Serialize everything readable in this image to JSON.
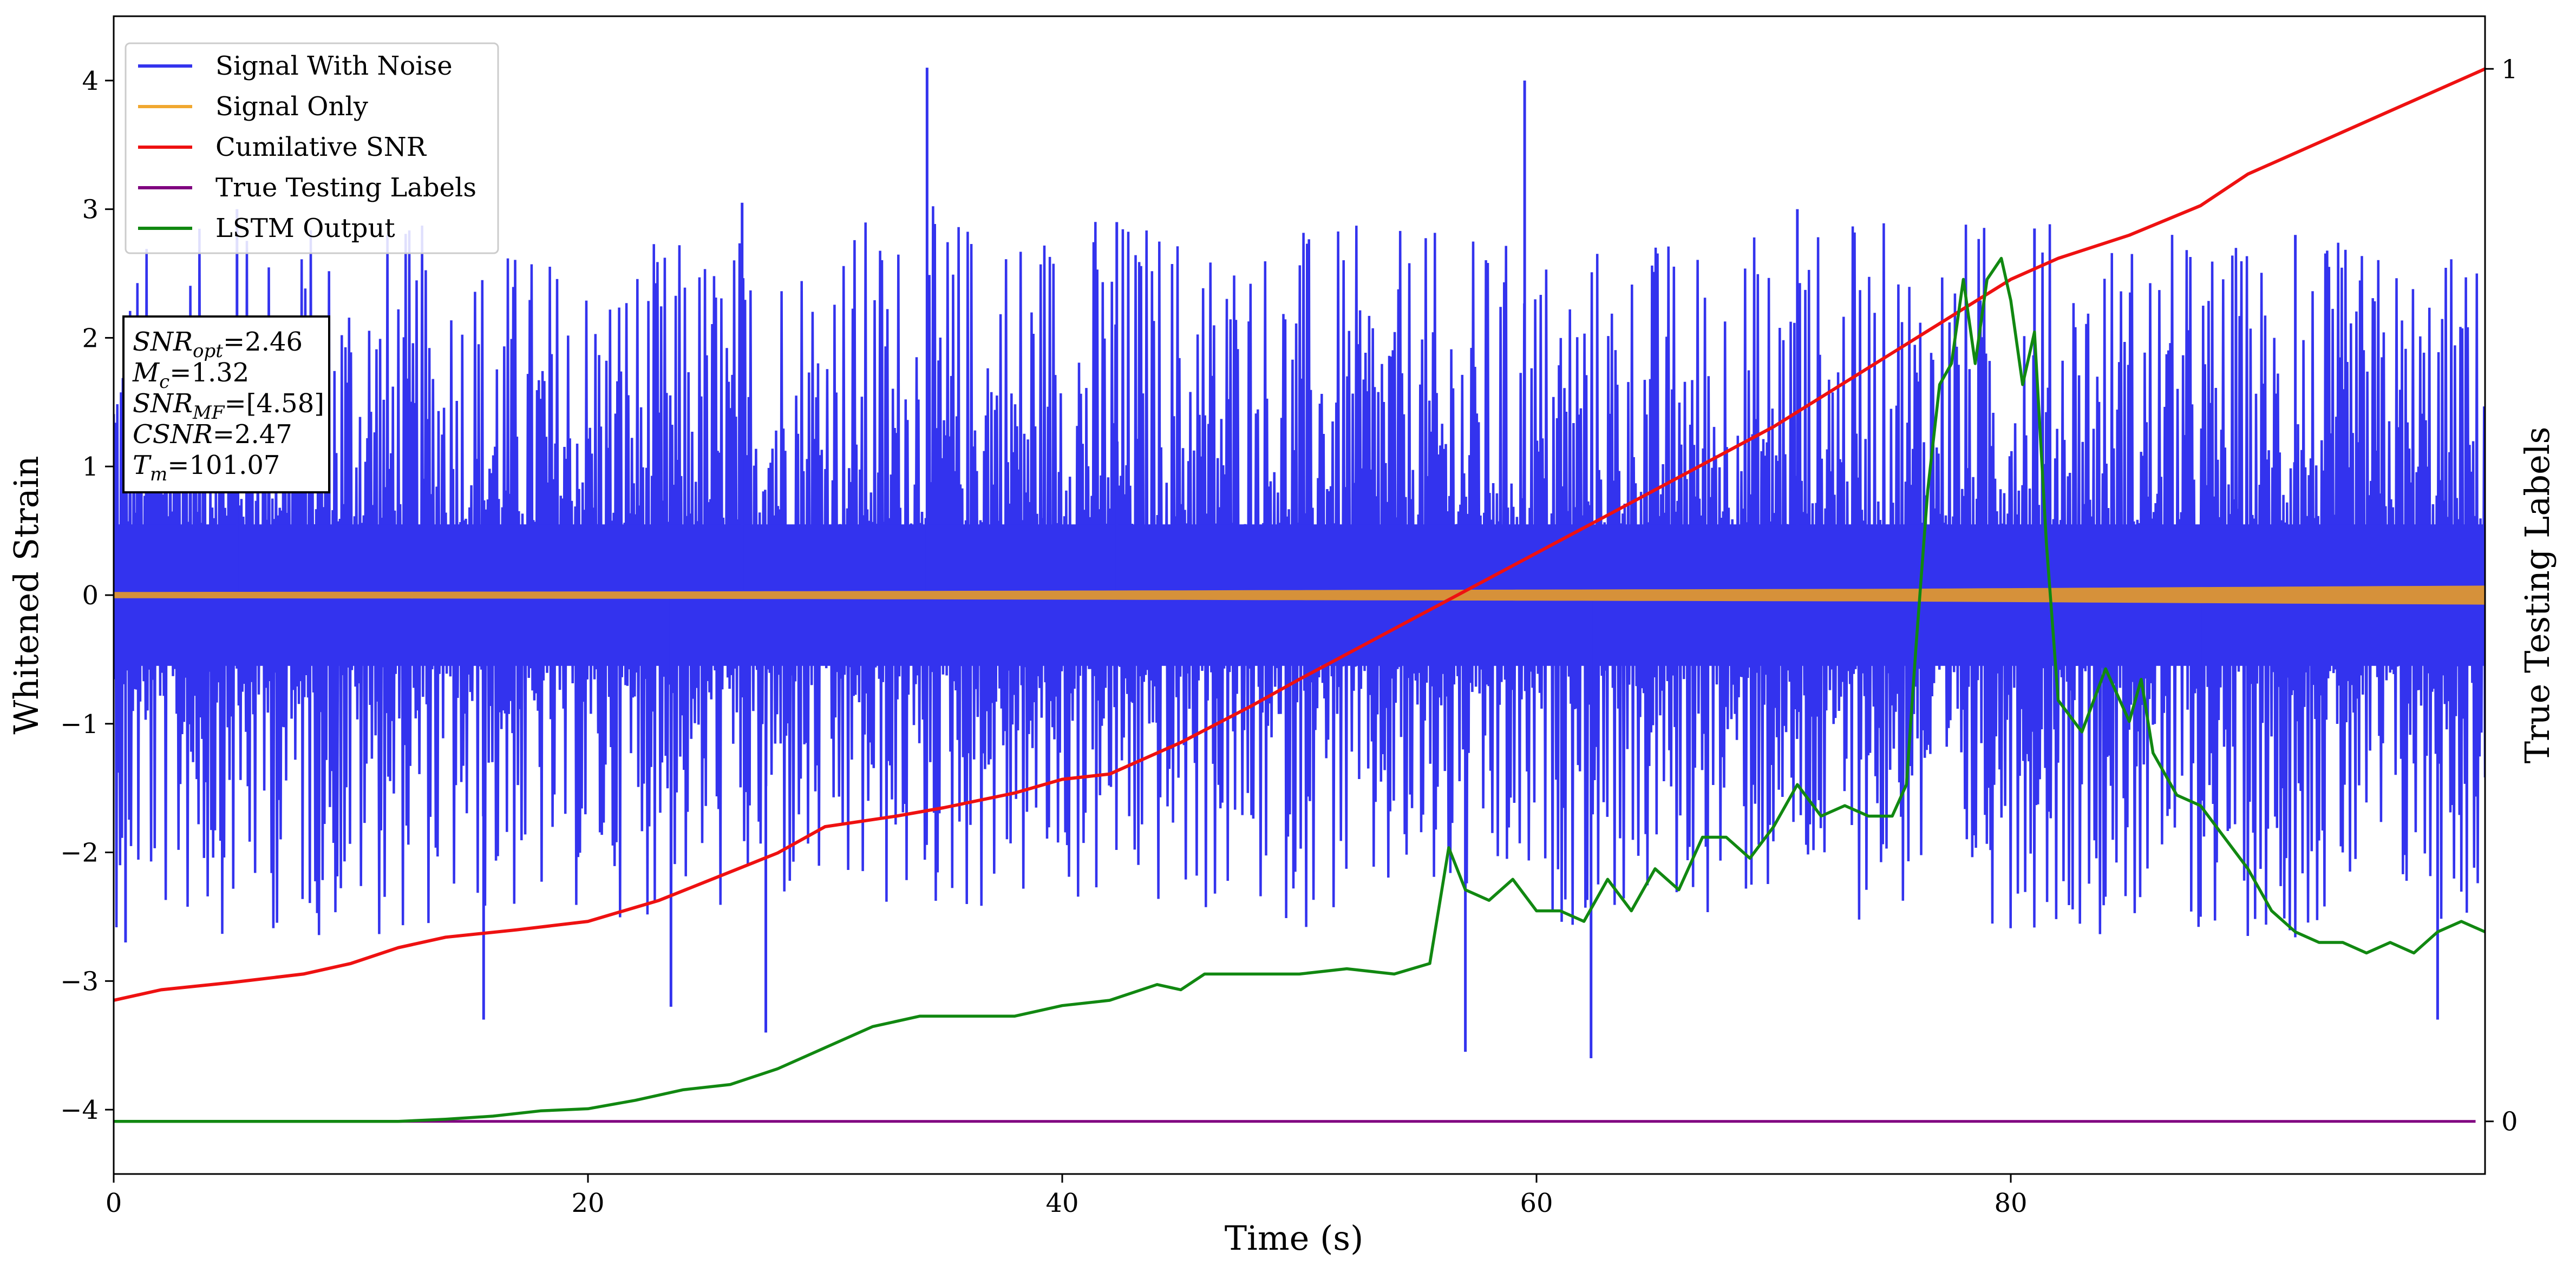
{
  "chart_data": {
    "type": "line",
    "title": "",
    "xlabel": "Time (s)",
    "ylabel": "Whitened Strain",
    "y2label": "True Testing Labels",
    "xlim": [
      0,
      100
    ],
    "ylim": [
      -4.5,
      4.5
    ],
    "y2lim": [
      -0.05,
      1.05
    ],
    "xticks": [
      0,
      20,
      40,
      60,
      80
    ],
    "xtick_labels": [
      "0",
      "20",
      "40",
      "60",
      "80"
    ],
    "yticks": [
      -4,
      -3,
      -2,
      -1,
      0,
      1,
      2,
      3,
      4
    ],
    "ytick_labels": [
      "−4",
      "−3",
      "−2",
      "−1",
      "0",
      "1",
      "2",
      "3",
      "4"
    ],
    "y2ticks": [
      0,
      1
    ],
    "y2tick_labels": [
      "0",
      "1"
    ],
    "legend_position": "top-left",
    "grid": false,
    "colors": {
      "noise": "#3333ee",
      "signal": "#f0a830",
      "csnr": "#ee1111",
      "labels": "#800080",
      "lstm": "#118811"
    },
    "legend": [
      {
        "name": "Signal With Noise",
        "color": "#3333ee"
      },
      {
        "name": "Signal Only",
        "color": "#f0a830"
      },
      {
        "name": "Cumilative SNR",
        "color": "#ee1111"
      },
      {
        "name": "True Testing Labels",
        "color": "#800080"
      },
      {
        "name": "LSTM Output",
        "color": "#118811"
      }
    ],
    "annotation": [
      {
        "var": "SNR",
        "sub": "opt",
        "value": "=2.46"
      },
      {
        "var": "M",
        "sub": "c",
        "value": "=1.32"
      },
      {
        "var": "SNR",
        "sub": "MF",
        "value": "=[4.58]"
      },
      {
        "var": "CSNR",
        "sub": "",
        "value": "=2.47"
      },
      {
        "var": "T",
        "sub": "m",
        "value": "=101.07"
      }
    ],
    "series": [
      {
        "key": "noise",
        "axis": "left",
        "envelope_x": [
          0,
          10,
          20,
          30,
          40,
          50,
          60,
          70,
          80,
          90,
          100
        ],
        "envelope_upper": [
          2.8,
          3.0,
          2.7,
          3.0,
          3.1,
          2.9,
          2.8,
          2.9,
          3.0,
          2.8,
          2.7
        ],
        "envelope_lower": [
          -2.6,
          -2.7,
          -2.5,
          -2.6,
          -2.5,
          -2.6,
          -2.6,
          -2.5,
          -2.6,
          -2.7,
          -2.6
        ],
        "extremes": [
          {
            "x": 34.3,
            "y": 4.1
          },
          {
            "x": 59.5,
            "y": 4.0
          },
          {
            "x": 5.2,
            "y": 3.0
          },
          {
            "x": 26.5,
            "y": 3.05
          },
          {
            "x": 42.3,
            "y": 2.9
          },
          {
            "x": 57.0,
            "y": -3.55
          },
          {
            "x": 62.3,
            "y": -3.6
          },
          {
            "x": 15.6,
            "y": -3.3
          },
          {
            "x": 27.5,
            "y": -3.4
          },
          {
            "x": 23.5,
            "y": -3.2
          },
          {
            "x": 98.0,
            "y": -3.3
          },
          {
            "x": 88.0,
            "y": -2.5
          },
          {
            "x": 0.5,
            "y": -2.7
          },
          {
            "x": 71.0,
            "y": 3.0
          },
          {
            "x": 81.0,
            "y": 2.85
          },
          {
            "x": 92.0,
            "y": 2.8
          }
        ]
      },
      {
        "key": "signal",
        "axis": "left",
        "x": [
          0,
          25,
          50,
          75,
          100
        ],
        "amplitude": [
          0.02,
          0.025,
          0.035,
          0.045,
          0.07
        ]
      },
      {
        "key": "csnr",
        "axis": "right",
        "x": [
          0,
          2,
          5,
          8,
          10,
          12,
          14,
          17,
          20,
          23,
          25,
          28,
          30,
          33,
          35,
          38,
          40,
          42,
          45,
          48,
          50,
          55,
          60,
          65,
          70,
          75,
          80,
          82,
          85,
          88,
          90,
          95,
          100
        ],
        "y": [
          0.115,
          0.125,
          0.132,
          0.14,
          0.15,
          0.165,
          0.175,
          0.182,
          0.19,
          0.21,
          0.228,
          0.255,
          0.28,
          0.29,
          0.298,
          0.312,
          0.325,
          0.33,
          0.36,
          0.395,
          0.42,
          0.48,
          0.54,
          0.6,
          0.66,
          0.73,
          0.8,
          0.82,
          0.842,
          0.87,
          0.9,
          0.95,
          1.0
        ]
      },
      {
        "key": "labels",
        "axis": "right",
        "x": [
          0,
          99.6
        ],
        "y": [
          0,
          0
        ]
      },
      {
        "key": "lstm",
        "axis": "right",
        "x": [
          0,
          12,
          14,
          16,
          18,
          20,
          22,
          24,
          26,
          28,
          30,
          32,
          34,
          36,
          38,
          40,
          42,
          44,
          45,
          46,
          48,
          50,
          52,
          54,
          55.5,
          56.3,
          57,
          58,
          59,
          60,
          61,
          62,
          63,
          64,
          65,
          66,
          67,
          68,
          69,
          70,
          71,
          72,
          73,
          74,
          75,
          75.6,
          76,
          76.5,
          77,
          77.5,
          78,
          78.5,
          79,
          79.6,
          80,
          80.5,
          81,
          81.5,
          82,
          83,
          84,
          85,
          85.5,
          86,
          86.5,
          87,
          88,
          89,
          90,
          91,
          92,
          93,
          94,
          95,
          96,
          97,
          97.5,
          98,
          99,
          100
        ],
        "y": [
          0,
          0,
          0.002,
          0.005,
          0.01,
          0.012,
          0.02,
          0.03,
          0.035,
          0.05,
          0.07,
          0.09,
          0.1,
          0.1,
          0.1,
          0.11,
          0.115,
          0.13,
          0.125,
          0.14,
          0.14,
          0.14,
          0.145,
          0.14,
          0.15,
          0.26,
          0.22,
          0.21,
          0.23,
          0.2,
          0.2,
          0.19,
          0.23,
          0.2,
          0.24,
          0.22,
          0.27,
          0.27,
          0.25,
          0.28,
          0.32,
          0.29,
          0.3,
          0.29,
          0.29,
          0.32,
          0.45,
          0.6,
          0.7,
          0.72,
          0.8,
          0.72,
          0.8,
          0.82,
          0.78,
          0.7,
          0.75,
          0.55,
          0.4,
          0.37,
          0.43,
          0.38,
          0.42,
          0.35,
          0.33,
          0.31,
          0.3,
          0.27,
          0.24,
          0.2,
          0.18,
          0.17,
          0.17,
          0.16,
          0.17,
          0.16,
          0.17,
          0.18,
          0.19,
          0.18
        ]
      }
    ]
  }
}
